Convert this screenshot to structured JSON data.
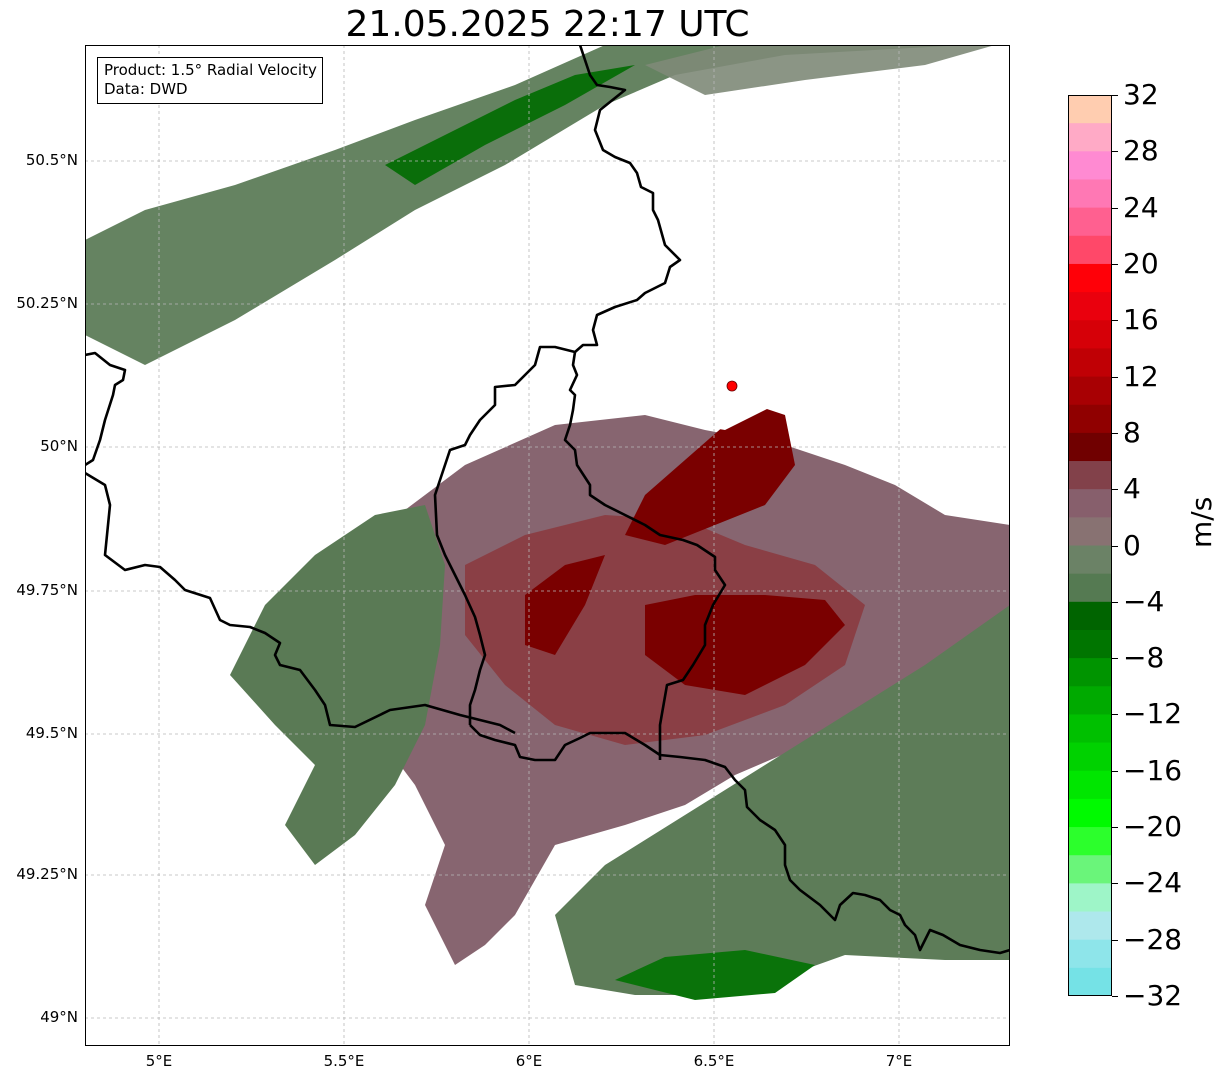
{
  "title": "21.05.2025 22:17 UTC",
  "info": {
    "product": "Product: 1.5° Radial Velocity",
    "source": "Data: DWD"
  },
  "map": {
    "lon_range": [
      4.8,
      7.3
    ],
    "lat_range": [
      48.95,
      50.7
    ],
    "lat_ticks": [
      "50.5°N",
      "50.25°N",
      "50°N",
      "49.75°N",
      "49.5°N",
      "49.25°N",
      "49°N"
    ],
    "lon_ticks": [
      "5°E",
      "5.5°E",
      "6°E",
      "6.5°E",
      "7°E"
    ],
    "radar_site": {
      "lon": 6.55,
      "lat": 50.11,
      "color": "#ff0000"
    },
    "colors": {
      "approach_green": "#5a7a55",
      "approach_light_green": "#6e8a6a",
      "strong_approach": "#0a7a0a",
      "receding_mauve": "#8a6670",
      "receding_brown": "#8a3f45",
      "strong_receding": "#7a0000",
      "border": "#000000"
    }
  },
  "colorbar": {
    "label": "m/s",
    "ticks": [
      "32",
      "28",
      "24",
      "20",
      "16",
      "12",
      "8",
      "4",
      "0",
      "−4",
      "−8",
      "−12",
      "−16",
      "−20",
      "−24",
      "−28",
      "−32"
    ],
    "range": [
      -32,
      32
    ],
    "colors_top_to_bottom": [
      "#ffcdb0",
      "#ffaac6",
      "#ff8ad2",
      "#ff78b4",
      "#ff6090",
      "#ff4869",
      "#ff0008",
      "#ea000d",
      "#d60008",
      "#c00005",
      "#a80003",
      "#900000",
      "#700000",
      "#82414a",
      "#875f6c",
      "#887272",
      "#6b8266",
      "#557a52",
      "#006400",
      "#007500",
      "#009400",
      "#00aa00",
      "#00c000",
      "#00d200",
      "#00e600",
      "#00fa00",
      "#2cff2c",
      "#6af57a",
      "#9ef5c8",
      "#aee8ec",
      "#8ee5ea",
      "#75e2e6"
    ]
  }
}
